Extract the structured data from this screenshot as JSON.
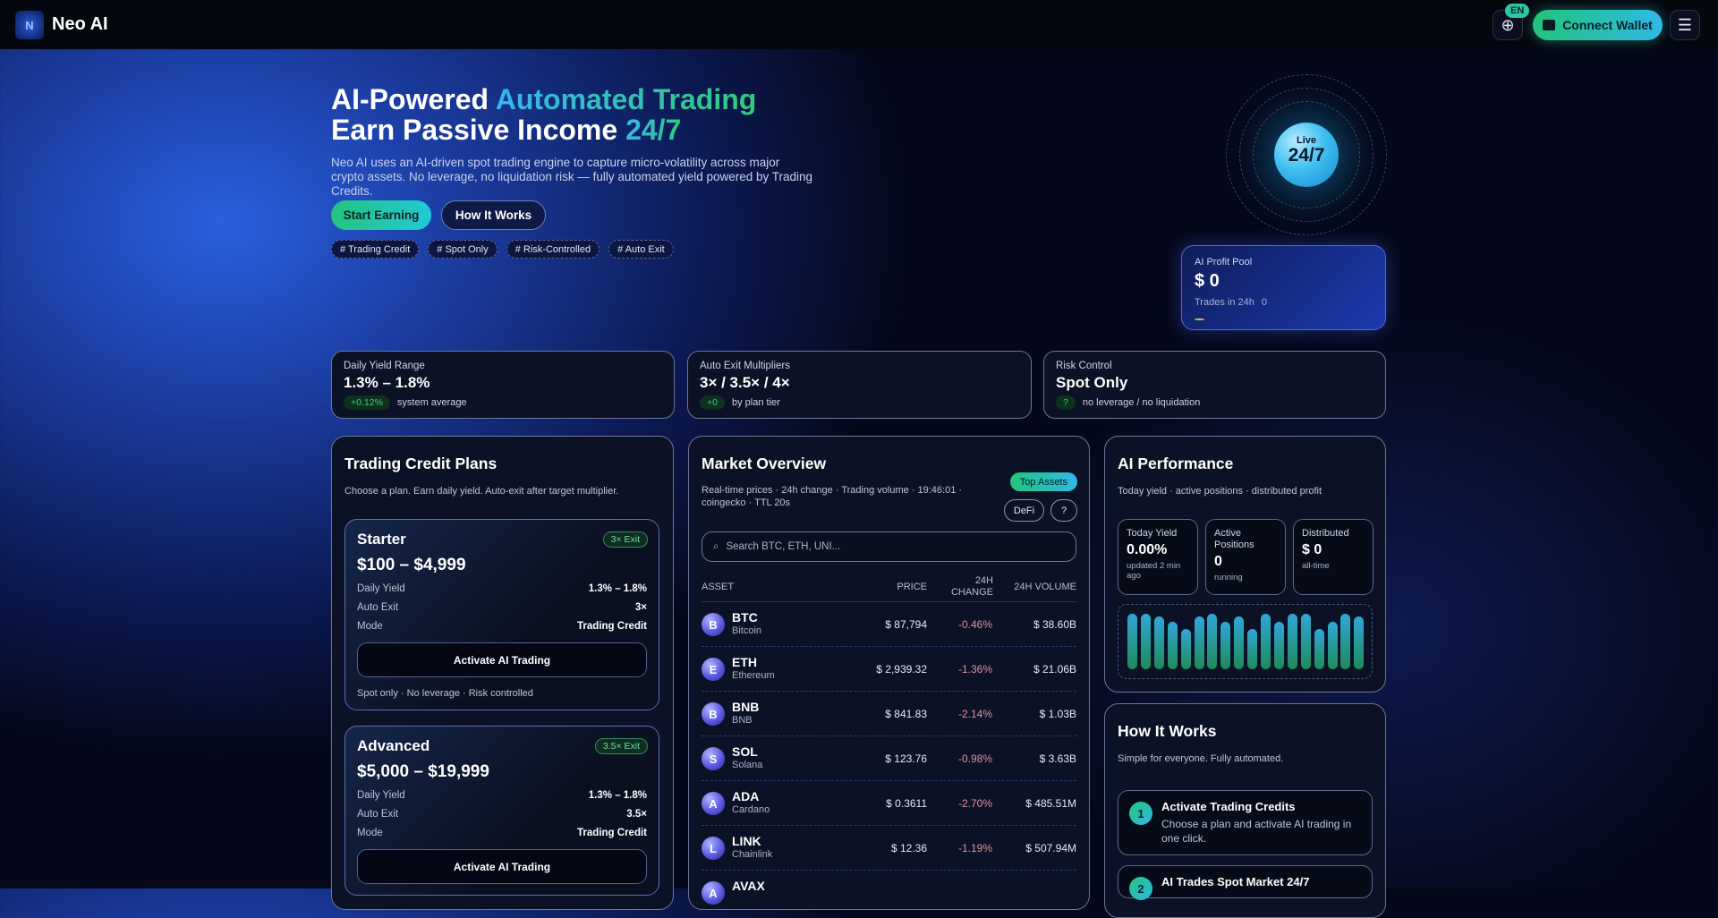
{
  "header": {
    "brand": "Neo AI",
    "lang": "EN",
    "connect_wallet": "Connect Wallet",
    "icons": [
      "logo",
      "globe-icon",
      "wallet-icon",
      "menu-icon"
    ]
  },
  "hero": {
    "title_1a": "AI-Powered ",
    "title_1b": "Automated Trading",
    "title_2a": "Earn Passive Income ",
    "title_2b": "24/7",
    "description": "Neo AI uses an AI-driven spot trading engine to capture micro-volatility across major crypto assets. No leverage, no liquidation risk — fully automated yield powered by Trading Credits.",
    "start_earning": "Start Earning",
    "how_it_works": "How It Works",
    "tags": [
      "# Trading Credit",
      "# Spot Only",
      "# Risk-Controlled",
      "# Auto Exit"
    ],
    "orb_label": "Live",
    "orb_value": "24/7"
  },
  "profit_pool": {
    "title": "AI Profit Pool",
    "value": "$ 0",
    "trades_label": "Trades in 24h",
    "trades_value": "0"
  },
  "stats": [
    {
      "title": "Daily Yield Range",
      "value": "1.3% – 1.8%",
      "badge": "+0.12%",
      "note": "system average"
    },
    {
      "title": "Auto Exit Multipliers",
      "value": "3× / 3.5× / 4×",
      "badge": "+0",
      "note": "by plan tier"
    },
    {
      "title": "Risk Control",
      "value": "Spot Only",
      "badge": "?",
      "note": "no leverage / no liquidation"
    }
  ],
  "plans": {
    "title": "Trading Credit Plans",
    "subtitle": "Choose a plan. Earn daily yield. Auto-exit after target multiplier.",
    "items": [
      {
        "name": "Starter",
        "exit": "3× Exit",
        "range": "$100 – $4,999",
        "daily_yield_label": "Daily Yield",
        "daily_yield": "1.3% – 1.8%",
        "auto_exit_label": "Auto Exit",
        "auto_exit": "3×",
        "mode_label": "Mode",
        "mode": "Trading Credit",
        "cta": "Activate AI Trading",
        "footnote": "Spot only · No leverage · Risk controlled"
      },
      {
        "name": "Advanced",
        "exit": "3.5× Exit",
        "range": "$5,000 – $19,999",
        "daily_yield_label": "Daily Yield",
        "daily_yield": "1.3% – 1.8%",
        "auto_exit_label": "Auto Exit",
        "auto_exit": "3.5×",
        "mode_label": "Mode",
        "mode": "Trading Credit",
        "cta": "Activate AI Trading"
      }
    ]
  },
  "market": {
    "title": "Market Overview",
    "subtitle": "Real-time prices · 24h change · Trading volume · 19:46:01 · coingecko · TTL 20s",
    "filters": {
      "top_assets": "Top Assets",
      "defi": "DeFi",
      "more": "?"
    },
    "search_placeholder": "Search BTC, ETH, UNI...",
    "columns": {
      "asset": "Asset",
      "price": "Price",
      "change": "24H Change",
      "volume": "24H Volume"
    },
    "rows": [
      {
        "letter": "B",
        "symbol": "BTC",
        "name": "Bitcoin",
        "price": "$ 87,794",
        "change": "-0.46%",
        "volume": "$ 38.60B"
      },
      {
        "letter": "E",
        "symbol": "ETH",
        "name": "Ethereum",
        "price": "$ 2,939.32",
        "change": "-1.36%",
        "volume": "$ 21.06B"
      },
      {
        "letter": "B",
        "symbol": "BNB",
        "name": "BNB",
        "price": "$ 841.83",
        "change": "-2.14%",
        "volume": "$ 1.03B"
      },
      {
        "letter": "S",
        "symbol": "SOL",
        "name": "Solana",
        "price": "$ 123.76",
        "change": "-0.98%",
        "volume": "$ 3.63B"
      },
      {
        "letter": "A",
        "symbol": "ADA",
        "name": "Cardano",
        "price": "$ 0.3611",
        "change": "-2.70%",
        "volume": "$ 485.51M"
      },
      {
        "letter": "L",
        "symbol": "LINK",
        "name": "Chainlink",
        "price": "$ 12.36",
        "change": "-1.19%",
        "volume": "$ 507.94M"
      },
      {
        "letter": "A",
        "symbol": "AVAX",
        "name": "",
        "price": "",
        "change": "",
        "volume": ""
      }
    ]
  },
  "performance": {
    "title": "AI Performance",
    "subtitle": "Today yield · active positions · distributed profit",
    "today_yield": {
      "label": "Today Yield",
      "value": "0.00%",
      "note": "updated 2 min ago"
    },
    "active_positions": {
      "label": "Active Positions",
      "value": "0",
      "note": "running"
    },
    "distributed": {
      "label": "Distributed",
      "value": "$ 0",
      "note": "all-time"
    },
    "activity_bars": [
      1,
      1,
      0.95,
      0.85,
      0.72,
      0.95,
      1,
      0.85,
      0.95,
      0.72,
      1,
      0.85,
      1,
      1,
      0.72,
      0.85,
      1,
      0.95
    ]
  },
  "how": {
    "title": "How It Works",
    "subtitle": "Simple for everyone. Fully automated.",
    "steps": [
      {
        "num": "1",
        "title": "Activate Trading Credits",
        "desc": "Choose a plan and activate AI trading in one click."
      },
      {
        "num": "2",
        "title": "AI Trades Spot Market 24/7",
        "desc": ""
      }
    ]
  },
  "colors": {
    "accent_green": "#24c47c",
    "accent_cyan": "#2fb9e6",
    "negative": "#e2929a",
    "background": "#05081a"
  }
}
